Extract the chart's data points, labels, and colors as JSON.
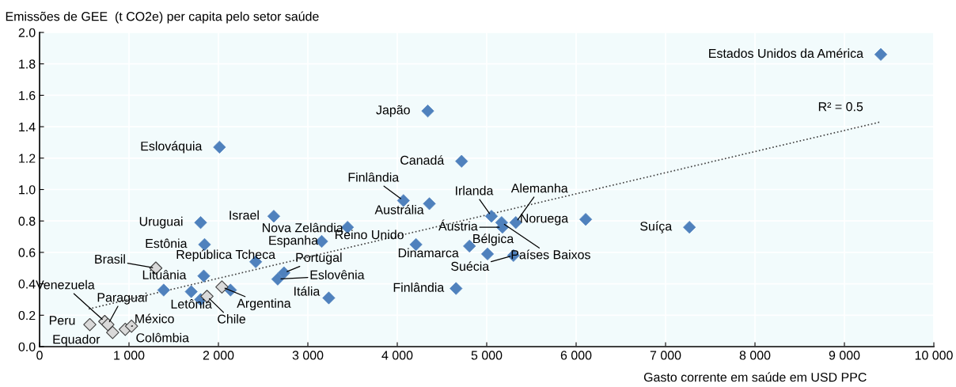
{
  "chart_data": {
    "type": "scatter",
    "ylabel": "Emissões de GEE  (t CO2e) per capita pelo setor saúde",
    "xlabel": "Gasto corrente em saúde em USD PPC",
    "grid": true,
    "xlim": [
      0,
      10000
    ],
    "ylim": [
      0,
      2.0
    ],
    "xticks": [
      0,
      {
        "value": 1000,
        "label": "1 000"
      },
      {
        "value": 2000,
        "label": "2 000"
      },
      {
        "value": 3000,
        "label": "3 000"
      },
      {
        "value": 4000,
        "label": "4 000"
      },
      {
        "value": 5000,
        "label": "5 000"
      },
      {
        "value": 6000,
        "label": "6 000"
      },
      {
        "value": 7000,
        "label": "7 000"
      },
      {
        "value": 8000,
        "label": "8 000"
      },
      {
        "value": 9000,
        "label": "9 000"
      },
      {
        "value": 10000,
        "label": "10 000"
      }
    ],
    "yticks": [
      {
        "value": 0,
        "label": "0.0"
      },
      0.2,
      0.4,
      0.6,
      0.8,
      {
        "value": 1.0,
        "label": "1.0"
      },
      1.2,
      1.4,
      1.6,
      1.8,
      {
        "value": 2.0,
        "label": "2.0"
      }
    ],
    "series": [
      {
        "color": "#4f81bd",
        "marker": "diamond",
        "x": [
          9407,
          4341,
          2012,
          4719,
          4069,
          4359,
          5053,
          5325,
          5176,
          5167,
          5009,
          5299,
          6107,
          7267,
          4657,
          3234,
          4807,
          4209,
          3444,
          3155,
          2619,
          1801,
          1845,
          2417,
          1836,
          2733,
          2663,
          1696,
          1388,
          2135,
          1801
        ],
        "values": [
          1.86,
          1.5,
          1.27,
          1.18,
          0.93,
          0.91,
          0.83,
          0.79,
          0.76,
          0.79,
          0.59,
          0.58,
          0.81,
          0.76,
          0.37,
          0.31,
          0.64,
          0.65,
          0.76,
          0.67,
          0.83,
          0.79,
          0.65,
          0.54,
          0.45,
          0.47,
          0.43,
          0.35,
          0.36,
          0.36,
          0.3
        ]
      },
      {
        "color": "#d9d9d9",
        "marker": "diamond",
        "x": [
          2039,
          1872,
          1300,
          729,
          764,
          562,
          817,
          958,
          1028
        ],
        "values": [
          0.38,
          0.32,
          0.5,
          0.16,
          0.14,
          0.14,
          0.09,
          0.11,
          0.13
        ]
      },
      {
        "type": "line",
        "color": "#404040",
        "line_style": "dotted",
        "marker": "none",
        "x": [
          550,
          9400
        ],
        "values": [
          0.24,
          1.43
        ]
      }
    ],
    "annotations": [
      {
        "text": "Estados Unidos da América",
        "x": 9407,
        "y": 1.86
      },
      {
        "text": "Japão",
        "x": 4341,
        "y": 1.5
      },
      {
        "text": "Eslováquia",
        "x": 2012,
        "y": 1.27
      },
      {
        "text": "Canadá",
        "x": 4719,
        "y": 1.18
      },
      {
        "text": "Finlândia",
        "x": 4069,
        "y": 0.93
      },
      {
        "text": "Austrália",
        "x": 4359,
        "y": 0.91
      },
      {
        "text": "Irlanda",
        "x": 5053,
        "y": 0.83
      },
      {
        "text": "Alemanha",
        "x": 5325,
        "y": 0.79
      },
      {
        "text": "Áustria",
        "x": 5176,
        "y": 0.76
      },
      {
        "text": "Países Baixos",
        "x": 5167,
        "y": 0.79
      },
      {
        "text": "Bélgica",
        "x": 5009,
        "y": 0.59
      },
      {
        "text": "Suécia",
        "x": 5299,
        "y": 0.58
      },
      {
        "text": "Noruega",
        "x": 6107,
        "y": 0.81
      },
      {
        "text": "Suíça",
        "x": 7267,
        "y": 0.76
      },
      {
        "text": "Finlândia",
        "x": 4657,
        "y": 0.37
      },
      {
        "text": "Itália",
        "x": 3234,
        "y": 0.31
      },
      {
        "text": "Dinamarca",
        "x": 4807,
        "y": 0.64
      },
      {
        "text": "Reino Unido",
        "x": 4209,
        "y": 0.65
      },
      {
        "text": "Nova Zelândia",
        "x": 3444,
        "y": 0.76
      },
      {
        "text": "Espanha",
        "x": 3155,
        "y": 0.67
      },
      {
        "text": "Israel",
        "x": 2619,
        "y": 0.83
      },
      {
        "text": "Uruguai",
        "x": 1801,
        "y": 0.79
      },
      {
        "text": "Estônia",
        "x": 1845,
        "y": 0.65
      },
      {
        "text": "República Tcheca",
        "x": 2417,
        "y": 0.54
      },
      {
        "text": "Lituânia",
        "x": 1836,
        "y": 0.45
      },
      {
        "text": "Portugal",
        "x": 2733,
        "y": 0.47
      },
      {
        "text": "Eslovênia",
        "x": 2663,
        "y": 0.43
      },
      {
        "text": "Letônia",
        "x": 1696,
        "y": 0.35
      },
      {
        "text": "Argentina",
        "x": 2039,
        "y": 0.38
      },
      {
        "text": "Chile",
        "x": 1872,
        "y": 0.32
      },
      {
        "text": "Brasil",
        "x": 1300,
        "y": 0.5
      },
      {
        "text": "Venezuela",
        "x": 729,
        "y": 0.16
      },
      {
        "text": "Paraguai",
        "x": 764,
        "y": 0.14
      },
      {
        "text": "Peru",
        "x": 562,
        "y": 0.14
      },
      {
        "text": "Equador",
        "x": 817,
        "y": 0.09
      },
      {
        "text": "Colômbia",
        "x": 958,
        "y": 0.11
      },
      {
        "text": "México",
        "x": 1028,
        "y": 0.13
      },
      {
        "text": "R² = 0.5",
        "x": 9400,
        "y": 1.43
      }
    ]
  }
}
